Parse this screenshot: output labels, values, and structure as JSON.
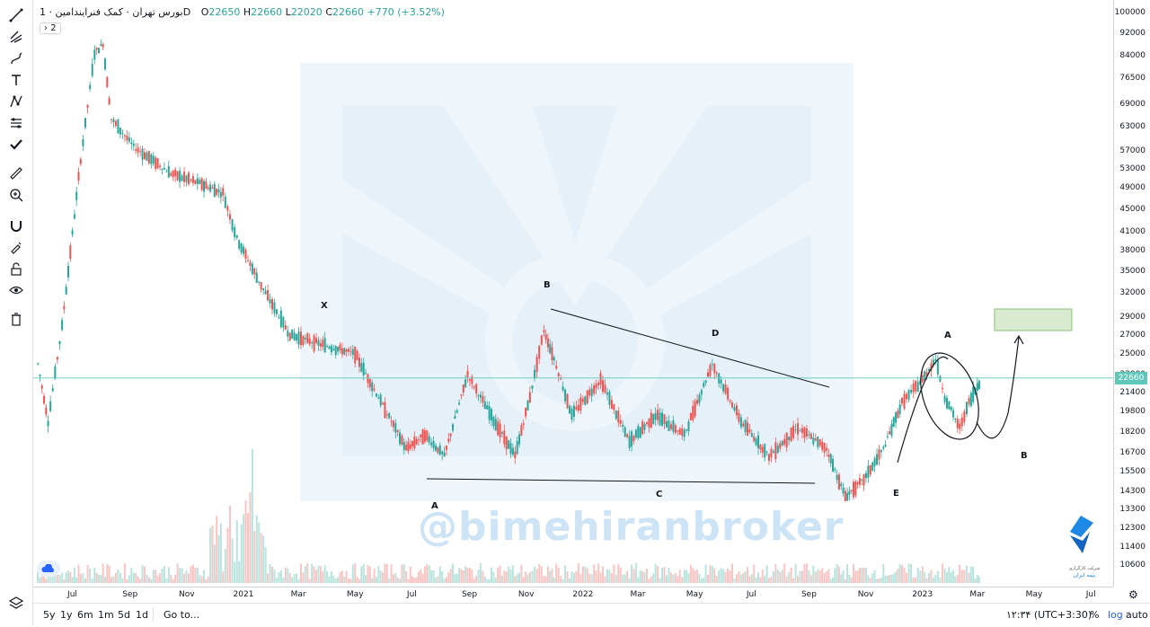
{
  "header": {
    "symbol": "بورس تهران · کمک فنرایندامین · 1D",
    "ohlc": {
      "o_label": "O",
      "o": "22650",
      "h_label": "H",
      "h": "22660",
      "l_label": "L",
      "l": "22020",
      "c_label": "C",
      "c": "22660",
      "change": "+770 (+3.52%)"
    },
    "expand_label": "2"
  },
  "watermark": {
    "text": "@bimehiranbroker"
  },
  "logo": {
    "text1": "شرکت کارگزاری",
    "text2": "بیمه ایران"
  },
  "left_toolbar": {
    "icons": [
      "trendline-icon",
      "pitchfork-icon",
      "brush-icon",
      "text-icon",
      "pattern-icon",
      "forecast-icon",
      "check-icon",
      "ruler-icon",
      "zoom-in-icon",
      "magnet-icon",
      "lock-drawing-icon",
      "unlock-icon",
      "eye-icon",
      "trash-icon"
    ]
  },
  "bottom_bar": {
    "ranges": [
      "5y",
      "1y",
      "6m",
      "1m",
      "5d",
      "1d"
    ],
    "goto": "Go to...",
    "clock": "۱۲:۳۴ (UTC+3:30)",
    "percent": "%",
    "log": "log",
    "auto": "auto"
  },
  "chart_data": {
    "type": "candlestick",
    "log_scale": true,
    "ylim": [
      10000,
      100000
    ],
    "y_ticks": [
      "100000",
      "92000",
      "84000",
      "76500",
      "69000",
      "63000",
      "57000",
      "53000",
      "49000",
      "45000",
      "41000",
      "38000",
      "35000",
      "32000",
      "29000",
      "27000",
      "25000",
      "23000",
      "21400",
      "19800",
      "18200",
      "16700",
      "15500",
      "14300",
      "13300",
      "12300",
      "11400",
      "10600"
    ],
    "x_ticks": [
      "Jul",
      "Sep",
      "Nov",
      "2021",
      "Mar",
      "May",
      "Jul",
      "Sep",
      "Nov",
      "2022",
      "Mar",
      "May",
      "Jul",
      "Sep",
      "Nov",
      "2023",
      "Mar",
      "May",
      "Jul"
    ],
    "last_price": "22660",
    "up_color": "#26a69a",
    "down_color": "#ef5350",
    "wave_labels": [
      "X",
      "B",
      "D",
      "A",
      "C",
      "E",
      "A",
      "B"
    ],
    "path_points": [
      {
        "date": "2020-05-25",
        "close": 24000
      },
      {
        "date": "2020-06-05",
        "close": 19000
      },
      {
        "date": "2020-06-20",
        "close": 28000
      },
      {
        "date": "2020-07-10",
        "close": 55000
      },
      {
        "date": "2020-07-25",
        "close": 85000
      },
      {
        "date": "2020-08-03",
        "close": 88000
      },
      {
        "date": "2020-08-12",
        "close": 65000
      },
      {
        "date": "2020-09-05",
        "close": 58000
      },
      {
        "date": "2020-10-15",
        "close": 52000
      },
      {
        "date": "2020-11-15",
        "close": 50000
      },
      {
        "date": "2020-12-10",
        "close": 48000
      },
      {
        "date": "2020-12-25",
        "close": 40000
      },
      {
        "date": "2021-01-20",
        "close": 33000
      },
      {
        "date": "2021-02-20",
        "close": 27000
      },
      {
        "date": "2021-03-25",
        "close": 26000
      },
      {
        "date": "2021-05-01",
        "close": 25000
      },
      {
        "date": "2021-06-25",
        "close": 17000
      },
      {
        "date": "2021-07-15",
        "close": 18000
      },
      {
        "date": "2021-08-05",
        "close": 16500
      },
      {
        "date": "2021-08-30",
        "close": 23000
      },
      {
        "date": "2021-09-20",
        "close": 20000
      },
      {
        "date": "2021-10-20",
        "close": 16500
      },
      {
        "date": "2021-11-05",
        "close": 21000
      },
      {
        "date": "2021-11-20",
        "close": 27500
      },
      {
        "date": "2021-12-01",
        "close": 24500
      },
      {
        "date": "2021-12-20",
        "close": 19500
      },
      {
        "date": "2022-01-20",
        "close": 22500
      },
      {
        "date": "2022-02-20",
        "close": 17500
      },
      {
        "date": "2022-03-20",
        "close": 19500
      },
      {
        "date": "2022-04-20",
        "close": 18000
      },
      {
        "date": "2022-05-20",
        "close": 24000
      },
      {
        "date": "2022-06-20",
        "close": 19000
      },
      {
        "date": "2022-07-20",
        "close": 16500
      },
      {
        "date": "2022-08-20",
        "close": 18500
      },
      {
        "date": "2022-09-20",
        "close": 17000
      },
      {
        "date": "2022-10-10",
        "close": 14000
      },
      {
        "date": "2022-10-30",
        "close": 15000
      },
      {
        "date": "2022-11-20",
        "close": 17000
      },
      {
        "date": "2022-12-10",
        "close": 20500
      },
      {
        "date": "2023-01-01",
        "close": 22500
      },
      {
        "date": "2023-01-15",
        "close": 24500
      },
      {
        "date": "2023-01-25",
        "close": 21000
      },
      {
        "date": "2023-02-10",
        "close": 18500
      },
      {
        "date": "2023-02-20",
        "close": 20500
      },
      {
        "date": "2023-03-01",
        "close": 21900
      },
      {
        "date": "2023-03-05",
        "close": 22660
      }
    ]
  }
}
